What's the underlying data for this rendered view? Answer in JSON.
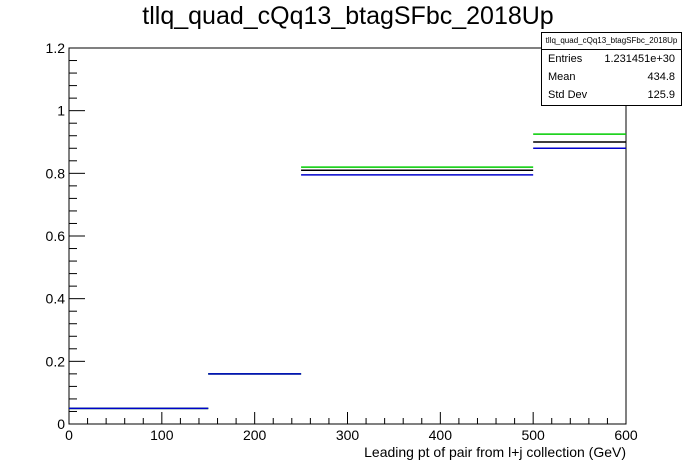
{
  "title": "tllq_quad_cQq13_btagSFbc_2018Up",
  "stats": {
    "name": "tllq_quad_cQq13_btagSFbc_2018Up",
    "rows": [
      {
        "label": "Entries",
        "value": "1.231451e+30"
      },
      {
        "label": "Mean",
        "value": "434.8"
      },
      {
        "label": "Std Dev",
        "value": "125.9"
      }
    ]
  },
  "chart_data": {
    "type": "histogram",
    "title": "tllq_quad_cQq13_btagSFbc_2018Up",
    "xlabel": "Leading pt of pair from l+j collection (GeV)",
    "ylabel": "",
    "xlim": [
      0,
      600
    ],
    "ylim": [
      0,
      1.2
    ],
    "x_ticks": [
      0,
      100,
      200,
      300,
      400,
      500,
      600
    ],
    "y_ticks": [
      0,
      0.2,
      0.4,
      0.6,
      0.8,
      1,
      1.2
    ],
    "x_tick_labels": [
      "0",
      "100",
      "200",
      "300",
      "400",
      "500",
      "600"
    ],
    "y_tick_labels": [
      "0",
      "0.2",
      "0.4",
      "0.6",
      "0.8",
      "1",
      "1.2"
    ],
    "bin_edges": [
      0,
      150,
      250,
      500,
      600
    ],
    "series": [
      {
        "color": "#000000",
        "values": [
          0.05,
          0.16,
          0.81,
          0.9
        ]
      },
      {
        "color": "#00cc00",
        "values": [
          0.05,
          0.16,
          0.82,
          0.925
        ]
      },
      {
        "color": "#0000cc",
        "values": [
          0.05,
          0.16,
          0.795,
          0.88
        ]
      }
    ],
    "grid": false,
    "legend": "top-right stats box"
  }
}
